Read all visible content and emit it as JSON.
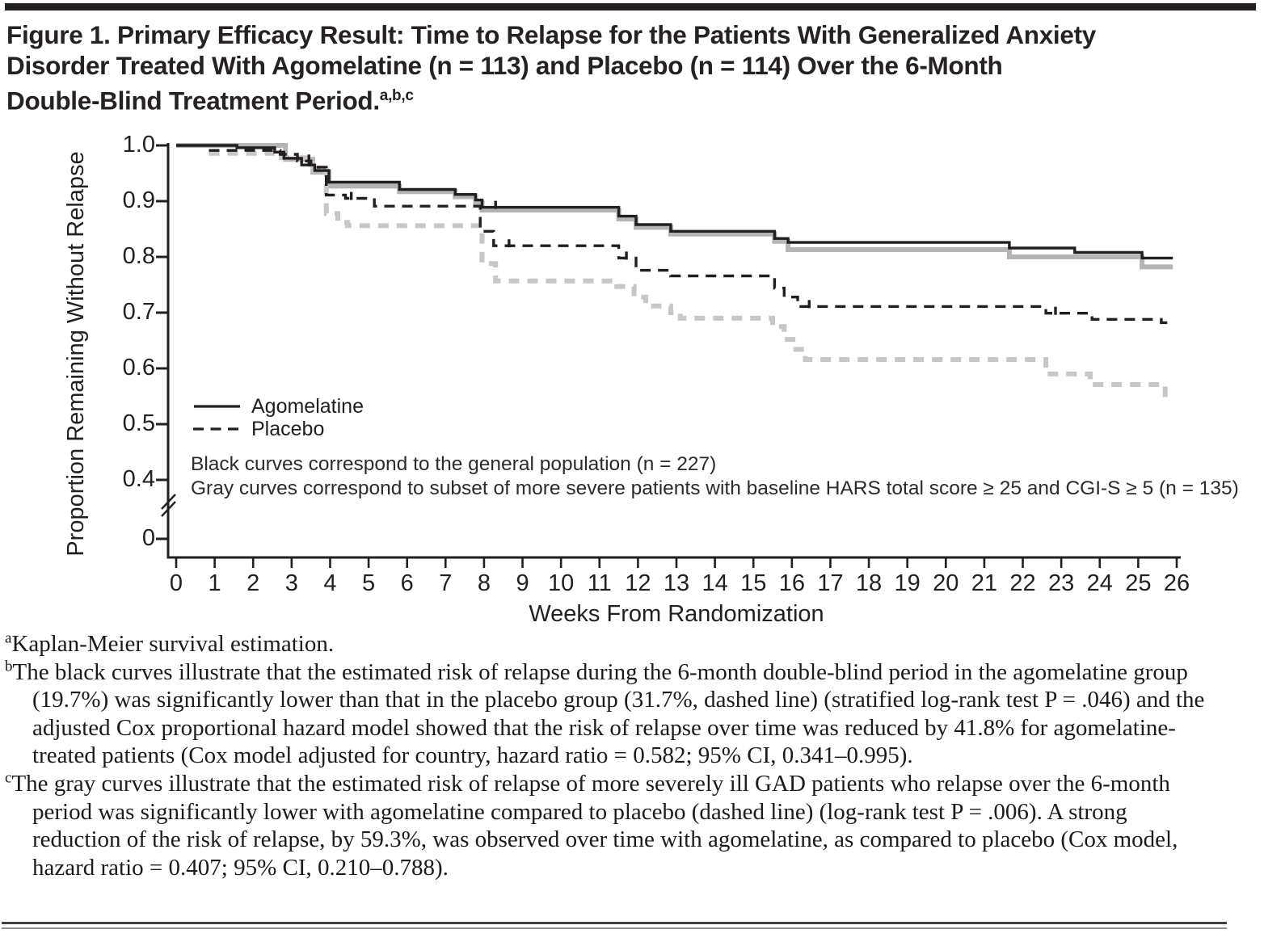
{
  "figure": {
    "title_lines": [
      "Figure 1. Primary Efficacy Result: Time to Relapse for the Patients With Generalized Anxiety",
      "Disorder Treated With Agomelatine (n = 113) and Placebo (n = 114) Over the 6-Month",
      "Double-Blind Treatment Period."
    ],
    "title_superscript": "a,b,c",
    "footnotes": [
      {
        "mark": "a",
        "text": "Kaplan-Meier survival estimation."
      },
      {
        "mark": "b",
        "text": "The black curves illustrate that the estimated risk of relapse during the 6-month double-blind period in the agomelatine group (19.7%) was significantly lower than that in the placebo group (31.7%, dashed line) (stratified log-rank test P = .046) and the adjusted Cox proportional hazard model showed that the risk of relapse over time was reduced by 41.8% for agomelatine-treated patients (Cox model adjusted for country, hazard ratio = 0.582; 95% CI, 0.341–0.995)."
      },
      {
        "mark": "c",
        "text": "The gray curves illustrate that the estimated risk of relapse of more severely ill GAD patients who relapse over the 6-month period was significantly lower with agomelatine compared to placebo (dashed line) (log-rank test P = .006). A strong reduction of the risk of relapse, by 59.3%, was observed over time with agomelatine, as compared to placebo (Cox model, hazard ratio = 0.407; 95% CI, 0.210–0.788)."
      }
    ]
  },
  "chart_data": {
    "type": "line",
    "subtype": "kaplan-meier-step",
    "title": "Time to Relapse over the 6-Month Double-Blind Treatment Period",
    "xlabel": "Weeks From Randomization",
    "ylabel": "Proportion Remaining Without Relapse",
    "xlim": [
      0,
      26
    ],
    "ylim_shown": [
      0.4,
      1.0
    ],
    "axis_break_between": [
      0,
      0.4
    ],
    "grid": false,
    "x_ticks": [
      0,
      1,
      2,
      3,
      4,
      5,
      6,
      7,
      8,
      9,
      10,
      11,
      12,
      13,
      14,
      15,
      16,
      17,
      18,
      19,
      20,
      21,
      22,
      23,
      24,
      25,
      26
    ],
    "y_tick_labels": [
      "1.0",
      "0.9",
      "0.8",
      "0.7",
      "0.6",
      "0.5",
      "0.4"
    ],
    "y_zero_label": "0",
    "legend_position": "inside lower-left",
    "legend": [
      {
        "label": "Agomelatine",
        "style": "solid"
      },
      {
        "label": "Placebo",
        "style": "dashed"
      }
    ],
    "annotations": [
      "Black curves correspond to the general population (n = 227)",
      "Gray curves correspond to subset of more severe patients with baseline HARS total score ≥ 25 and CGI-S ≥ 5 (n = 135)"
    ],
    "colors": {
      "black": "#231f20",
      "gray_solid": "#b5b5b5",
      "gray_dashed": "#c7c7c7"
    },
    "series": [
      {
        "name": "agomelatine-severe",
        "label": "Agomelatine (severe subset, gray solid)",
        "color": "#b5b5b5",
        "dash": null,
        "width": 6,
        "end_week": 25.9,
        "points": [
          [
            0,
            1.0
          ],
          [
            2.84,
            0.975
          ],
          [
            3.55,
            0.952
          ],
          [
            3.97,
            0.927
          ],
          [
            5.8,
            0.917
          ],
          [
            7.25,
            0.908
          ],
          [
            7.78,
            0.898
          ],
          [
            7.95,
            0.884
          ],
          [
            11.5,
            0.868
          ],
          [
            11.95,
            0.853
          ],
          [
            12.85,
            0.841
          ],
          [
            15.55,
            0.828
          ],
          [
            15.9,
            0.813
          ],
          [
            21.65,
            0.8
          ],
          [
            25.1,
            0.782
          ]
        ],
        "censor_marks": [
          [
            3.7,
            0.952
          ]
        ]
      },
      {
        "name": "placebo-severe",
        "label": "Placebo (severe subset, gray dashed)",
        "color": "#c7c7c7",
        "dash": "13 10",
        "width": 6,
        "end_week": 25.78,
        "points": [
          [
            0.85,
            0.986
          ],
          [
            2.56,
            0.978
          ],
          [
            3.55,
            0.956
          ],
          [
            3.9,
            0.878
          ],
          [
            4.2,
            0.862
          ],
          [
            4.45,
            0.856
          ],
          [
            7.95,
            0.788
          ],
          [
            8.3,
            0.757
          ],
          [
            11.45,
            0.747
          ],
          [
            11.9,
            0.728
          ],
          [
            12.2,
            0.712
          ],
          [
            12.85,
            0.7
          ],
          [
            13.1,
            0.69
          ],
          [
            15.5,
            0.675
          ],
          [
            15.8,
            0.652
          ],
          [
            16.1,
            0.634
          ],
          [
            16.35,
            0.616
          ],
          [
            22.6,
            0.59
          ],
          [
            23.75,
            0.571
          ],
          [
            25.7,
            0.548
          ]
        ],
        "censor_marks": []
      },
      {
        "name": "agomelatine-general",
        "label": "Agomelatine (general population, black solid)",
        "color": "#231f20",
        "dash": null,
        "width": 3.4,
        "end_week": 25.9,
        "points": [
          [
            0,
            1.0
          ],
          [
            1.58,
            0.996
          ],
          [
            2.56,
            0.988
          ],
          [
            2.8,
            0.977
          ],
          [
            3.26,
            0.965
          ],
          [
            3.6,
            0.955
          ],
          [
            3.97,
            0.934
          ],
          [
            5.8,
            0.921
          ],
          [
            7.25,
            0.912
          ],
          [
            7.78,
            0.902
          ],
          [
            7.95,
            0.889
          ],
          [
            11.5,
            0.873
          ],
          [
            11.95,
            0.858
          ],
          [
            12.85,
            0.846
          ],
          [
            15.55,
            0.833
          ],
          [
            15.9,
            0.826
          ],
          [
            21.65,
            0.816
          ],
          [
            23.35,
            0.808
          ],
          [
            25.1,
            0.798
          ]
        ],
        "censor_marks": [
          [
            3.45,
            0.965
          ],
          [
            8.3,
            0.889
          ]
        ]
      },
      {
        "name": "placebo-general",
        "label": "Placebo (general population, black dashed)",
        "color": "#231f20",
        "dash": "13 9",
        "width": 3.4,
        "end_week": 25.85,
        "points": [
          [
            0.85,
            0.991
          ],
          [
            2.7,
            0.984
          ],
          [
            3.15,
            0.972
          ],
          [
            3.5,
            0.961
          ],
          [
            3.9,
            0.911
          ],
          [
            4.4,
            0.905
          ],
          [
            5.15,
            0.891
          ],
          [
            7.9,
            0.846
          ],
          [
            8.25,
            0.82
          ],
          [
            11.5,
            0.798
          ],
          [
            11.95,
            0.776
          ],
          [
            12.85,
            0.766
          ],
          [
            15.55,
            0.744
          ],
          [
            15.8,
            0.728
          ],
          [
            16.15,
            0.711
          ],
          [
            22.6,
            0.699
          ],
          [
            23.8,
            0.688
          ],
          [
            25.6,
            0.682
          ]
        ],
        "censor_marks": [
          [
            3.45,
            0.972
          ],
          [
            4.55,
            0.905
          ],
          [
            8.65,
            0.82
          ],
          [
            11.7,
            0.798
          ],
          [
            16.45,
            0.711
          ],
          [
            22.85,
            0.699
          ]
        ]
      }
    ]
  }
}
